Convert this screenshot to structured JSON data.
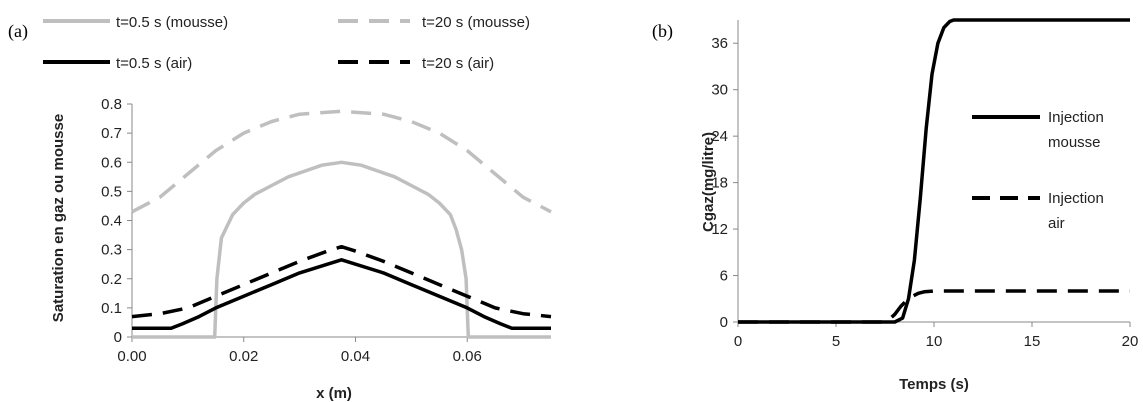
{
  "chart_data": [
    {
      "type": "line",
      "panel_label": "(a)",
      "xlabel": "x (m)",
      "ylabel": "Saturation en gaz ou mousse",
      "xlim": [
        0,
        0.075
      ],
      "ylim": [
        0,
        0.8
      ],
      "xticks": [
        "0.00",
        "0.02",
        "0.04",
        "0.06"
      ],
      "yticks": [
        "0",
        "0.1",
        "0.2",
        "0.3",
        "0.4",
        "0.5",
        "0.6",
        "0.7",
        "0.8"
      ],
      "grid": false,
      "legend_position": "top",
      "series": [
        {
          "name": "t=0.5 s (mousse)",
          "color": "#bfbfbf",
          "dash": "solid",
          "x": [
            0,
            0.0148,
            0.0152,
            0.016,
            0.018,
            0.02,
            0.022,
            0.025,
            0.028,
            0.031,
            0.034,
            0.0375,
            0.041,
            0.044,
            0.047,
            0.05,
            0.053,
            0.055,
            0.057,
            0.058,
            0.059,
            0.0598,
            0.0602,
            0.075
          ],
          "y": [
            0,
            0,
            0.2,
            0.34,
            0.42,
            0.46,
            0.49,
            0.52,
            0.55,
            0.57,
            0.59,
            0.6,
            0.59,
            0.57,
            0.55,
            0.52,
            0.49,
            0.46,
            0.42,
            0.37,
            0.3,
            0.2,
            0,
            0
          ]
        },
        {
          "name": "t=20 s (mousse)",
          "color": "#bfbfbf",
          "dash": "dashed",
          "x": [
            0,
            0.005,
            0.01,
            0.015,
            0.02,
            0.025,
            0.03,
            0.0375,
            0.045,
            0.05,
            0.055,
            0.06,
            0.065,
            0.07,
            0.075
          ],
          "y": [
            0.43,
            0.48,
            0.56,
            0.64,
            0.7,
            0.74,
            0.765,
            0.775,
            0.765,
            0.74,
            0.7,
            0.64,
            0.56,
            0.48,
            0.43
          ]
        },
        {
          "name": "t=0.5 s (air)",
          "color": "#000000",
          "dash": "solid",
          "x": [
            0,
            0.007,
            0.009,
            0.012,
            0.015,
            0.02,
            0.025,
            0.03,
            0.0375,
            0.045,
            0.05,
            0.055,
            0.06,
            0.063,
            0.066,
            0.068,
            0.075
          ],
          "y": [
            0.03,
            0.03,
            0.045,
            0.07,
            0.1,
            0.14,
            0.18,
            0.22,
            0.265,
            0.22,
            0.18,
            0.14,
            0.1,
            0.07,
            0.045,
            0.03,
            0.03
          ]
        },
        {
          "name": "t=20 s (air)",
          "color": "#000000",
          "dash": "dashed",
          "x": [
            0,
            0.005,
            0.01,
            0.015,
            0.02,
            0.025,
            0.03,
            0.035,
            0.0375,
            0.04,
            0.045,
            0.05,
            0.055,
            0.06,
            0.065,
            0.07,
            0.075
          ],
          "y": [
            0.07,
            0.08,
            0.1,
            0.14,
            0.18,
            0.22,
            0.26,
            0.295,
            0.31,
            0.295,
            0.26,
            0.22,
            0.18,
            0.14,
            0.1,
            0.08,
            0.07
          ]
        }
      ]
    },
    {
      "type": "line",
      "panel_label": "(b)",
      "xlabel": "Temps (s)",
      "ylabel": "Cgaz(mg/litre)",
      "xlim": [
        0,
        20
      ],
      "ylim": [
        0,
        39
      ],
      "xticks": [
        "0",
        "5",
        "10",
        "15",
        "20"
      ],
      "yticks": [
        "0",
        "6",
        "12",
        "18",
        "24",
        "30",
        "36"
      ],
      "grid": false,
      "legend_position": "right",
      "series": [
        {
          "name": "Injection mousse",
          "color": "#000000",
          "dash": "solid",
          "x": [
            0,
            8,
            8.4,
            8.7,
            9.0,
            9.3,
            9.6,
            9.9,
            10.2,
            10.5,
            10.8,
            11.0,
            20
          ],
          "y": [
            0,
            0,
            0.5,
            3,
            8,
            16,
            25,
            32,
            36,
            38,
            38.8,
            39,
            39
          ]
        },
        {
          "name": "Injection air",
          "color": "#000000",
          "dash": "dashed",
          "x": [
            0,
            7.3,
            7.7,
            8.0,
            8.3,
            8.6,
            8.9,
            9.2,
            9.5,
            10,
            20
          ],
          "y": [
            0,
            0,
            0.3,
            1,
            2,
            2.8,
            3.3,
            3.7,
            3.9,
            4,
            4
          ]
        }
      ]
    }
  ]
}
